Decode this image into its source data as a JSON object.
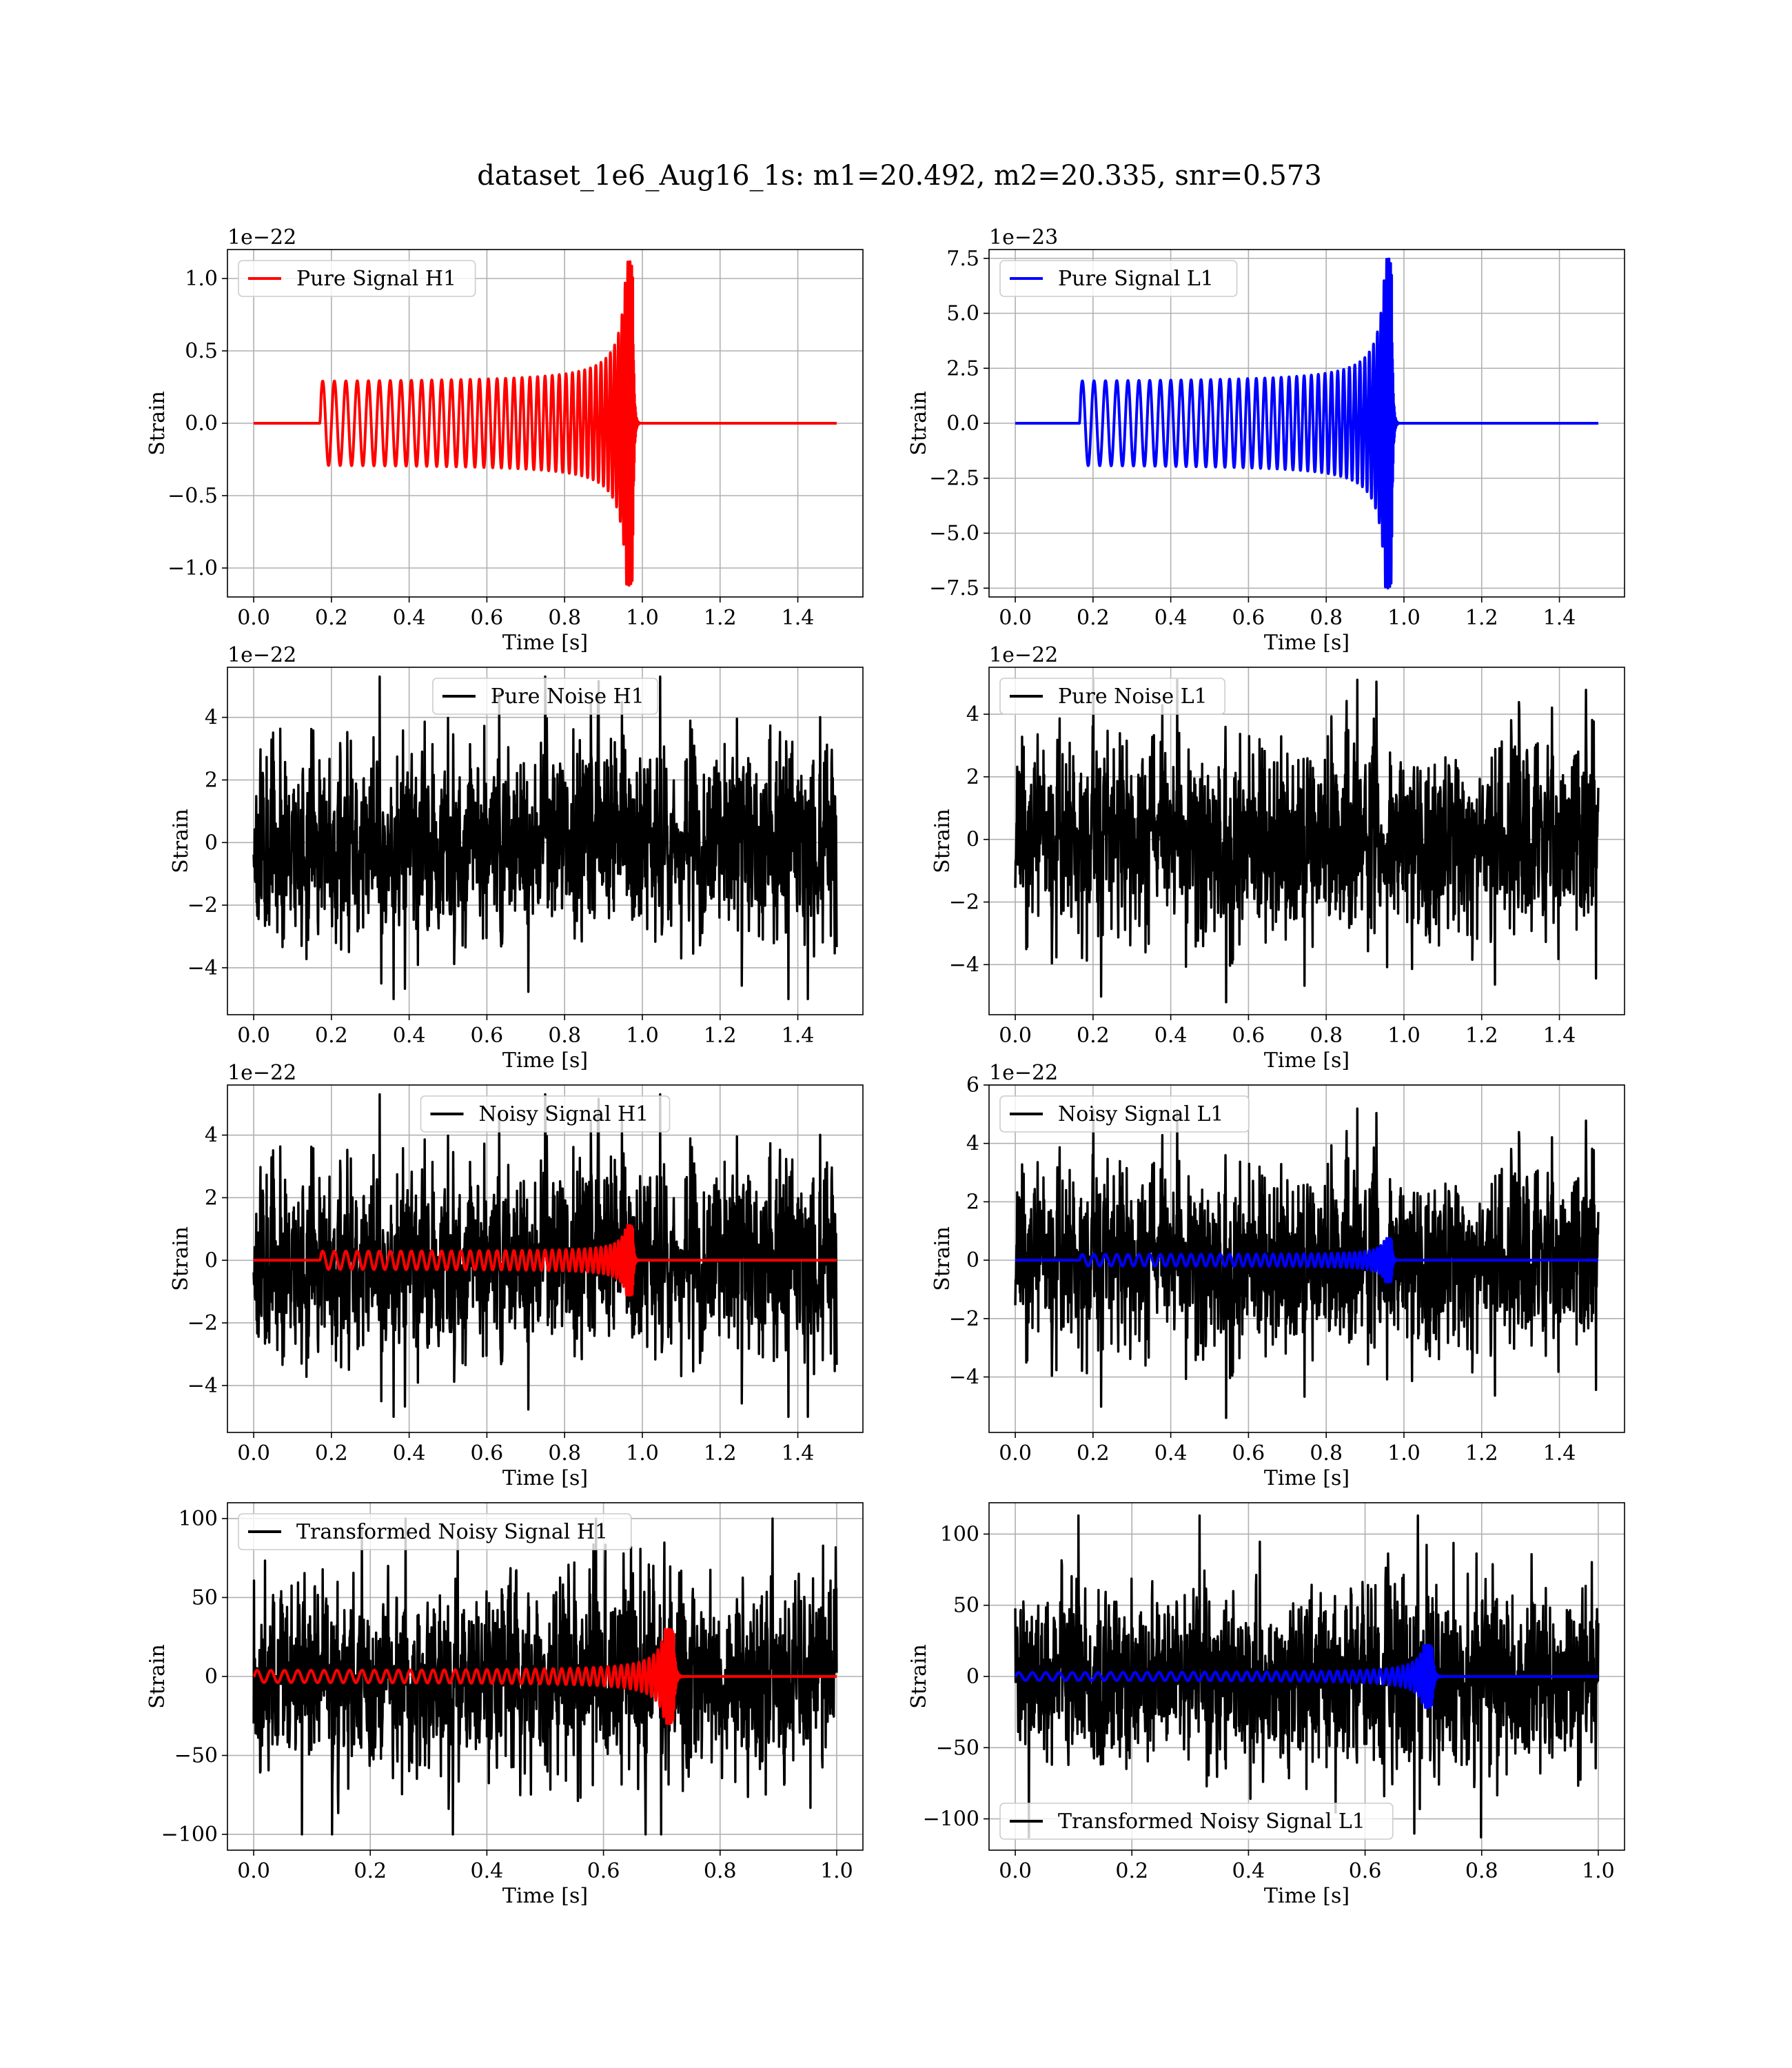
{
  "figure": {
    "title": "dataset_1e6_Aug16_1s: m1=20.492, m2=20.335, snr=0.573"
  },
  "colors": {
    "h1_signal": "#ff0000",
    "l1_signal": "#0000ff",
    "noise": "#000000",
    "grid": "#b0b0b0"
  },
  "chart_data": [
    {
      "id": "pure-signal-h1",
      "type": "line",
      "x_range": [
        0,
        1.5
      ],
      "xticks": [
        "0.0",
        "0.2",
        "0.4",
        "0.6",
        "0.8",
        "1.0",
        "1.2",
        "1.4"
      ],
      "xlabel": "Time [s]",
      "ylabel": "Strain",
      "ylim": [
        -1.2,
        1.2
      ],
      "yticks": [
        "−1.0",
        "−0.5",
        "0.0",
        "0.5",
        "1.0"
      ],
      "offset_text": "1e−22",
      "grid": true,
      "legend_position": "upper-left",
      "series": [
        {
          "name": "Pure Signal H1",
          "color": "#ff0000",
          "kind": "chirp",
          "waveform": {
            "start": 0.17,
            "merger": 0.975,
            "end": 1.5,
            "amplitude_start": 0.28,
            "amplitude_peak": 1.12,
            "cycles": 42
          }
        }
      ]
    },
    {
      "id": "pure-signal-l1",
      "type": "line",
      "x_range": [
        0,
        1.5
      ],
      "xticks": [
        "0.0",
        "0.2",
        "0.4",
        "0.6",
        "0.8",
        "1.0",
        "1.2",
        "1.4"
      ],
      "xlabel": "Time [s]",
      "ylabel": "Strain",
      "ylim": [
        -7.9,
        7.9
      ],
      "yticks": [
        "−7.5",
        "−5.0",
        "−2.5",
        "0.0",
        "2.5",
        "5.0",
        "7.5"
      ],
      "offset_text": "1e−23",
      "grid": true,
      "legend_position": "upper-left",
      "series": [
        {
          "name": "Pure Signal L1",
          "color": "#0000ff",
          "kind": "chirp",
          "waveform": {
            "start": 0.165,
            "merger": 0.968,
            "end": 1.5,
            "amplitude_start": 1.85,
            "amplitude_peak": 7.5,
            "cycles": 42
          }
        }
      ]
    },
    {
      "id": "pure-noise-h1",
      "type": "line",
      "x_range": [
        0,
        1.5
      ],
      "xticks": [
        "0.0",
        "0.2",
        "0.4",
        "0.6",
        "0.8",
        "1.0",
        "1.2",
        "1.4"
      ],
      "xlabel": "Time [s]",
      "ylabel": "Strain",
      "ylim": [
        -5.5,
        5.6
      ],
      "yticks": [
        "−4",
        "−2",
        "0",
        "2",
        "4"
      ],
      "offset_text": "1e−22",
      "grid": true,
      "legend_position": "upper-center",
      "series": [
        {
          "name": "Pure Noise H1",
          "color": "#000000",
          "kind": "noise",
          "waveform": {
            "start": 0,
            "end": 1.5,
            "std": 1.55,
            "min": -5.0,
            "max": 5.3,
            "seed": 11
          }
        }
      ]
    },
    {
      "id": "pure-noise-l1",
      "type": "line",
      "x_range": [
        0,
        1.5
      ],
      "xticks": [
        "0.0",
        "0.2",
        "0.4",
        "0.6",
        "0.8",
        "1.0",
        "1.2",
        "1.4"
      ],
      "xlabel": "Time [s]",
      "ylabel": "Strain",
      "ylim": [
        -5.6,
        5.5
      ],
      "yticks": [
        "−4",
        "−2",
        "0",
        "2",
        "4"
      ],
      "offset_text": "1e−22",
      "grid": true,
      "legend_position": "upper-left",
      "series": [
        {
          "name": "Pure Noise L1",
          "color": "#000000",
          "kind": "noise",
          "waveform": {
            "start": 0,
            "end": 1.5,
            "std": 1.55,
            "min": -5.2,
            "max": 5.1,
            "seed": 23
          }
        }
      ]
    },
    {
      "id": "noisy-signal-h1",
      "type": "line",
      "x_range": [
        0,
        1.5
      ],
      "xticks": [
        "0.0",
        "0.2",
        "0.4",
        "0.6",
        "0.8",
        "1.0",
        "1.2",
        "1.4"
      ],
      "xlabel": "Time [s]",
      "ylabel": "Strain",
      "ylim": [
        -5.5,
        5.6
      ],
      "yticks": [
        "−4",
        "−2",
        "0",
        "2",
        "4"
      ],
      "offset_text": "1e−22",
      "grid": true,
      "legend_position": "upper-center",
      "series": [
        {
          "name": "Noisy Signal H1",
          "color": "#000000",
          "kind": "noise",
          "waveform": {
            "start": 0,
            "end": 1.5,
            "std": 1.55,
            "min": -5.0,
            "max": 5.3,
            "seed": 11
          }
        },
        {
          "color": "#ff0000",
          "kind": "chirp",
          "waveform": {
            "start": 0.17,
            "merger": 0.975,
            "end": 1.5,
            "amplitude_start": 0.28,
            "amplitude_peak": 1.12,
            "cycles": 42
          }
        }
      ]
    },
    {
      "id": "noisy-signal-l1",
      "type": "line",
      "x_range": [
        0,
        1.5
      ],
      "xticks": [
        "0.0",
        "0.2",
        "0.4",
        "0.6",
        "0.8",
        "1.0",
        "1.2",
        "1.4"
      ],
      "xlabel": "Time [s]",
      "ylabel": "Strain",
      "ylim": [
        -5.9,
        6.0
      ],
      "yticks": [
        "−4",
        "−2",
        "0",
        "2",
        "4",
        "6"
      ],
      "offset_text": "1e−22",
      "grid": true,
      "legend_position": "upper-left",
      "series": [
        {
          "name": "Noisy Signal L1",
          "color": "#000000",
          "kind": "noise",
          "waveform": {
            "start": 0,
            "end": 1.5,
            "std": 1.55,
            "min": -5.4,
            "max": 5.2,
            "seed": 23
          }
        },
        {
          "color": "#0000ff",
          "kind": "chirp",
          "waveform": {
            "start": 0.165,
            "merger": 0.968,
            "end": 1.5,
            "amplitude_start": 0.19,
            "amplitude_peak": 0.75,
            "cycles": 42
          }
        }
      ]
    },
    {
      "id": "transformed-noisy-signal-h1",
      "type": "line",
      "x_range": [
        0,
        1.0
      ],
      "xticks": [
        "0.0",
        "0.2",
        "0.4",
        "0.6",
        "0.8",
        "1.0"
      ],
      "xlabel": "Time [s]",
      "ylabel": "Strain",
      "ylim": [
        -110,
        110
      ],
      "yticks": [
        "−100",
        "−50",
        "0",
        "50",
        "100"
      ],
      "grid": true,
      "legend_position": "upper-left",
      "series": [
        {
          "name": "Transformed Noisy Signal H1",
          "color": "#000000",
          "kind": "noise",
          "waveform": {
            "start": 0,
            "end": 1.0,
            "std": 30,
            "min": -100,
            "max": 100,
            "seed": 37
          }
        },
        {
          "color": "#ff0000",
          "kind": "chirp",
          "waveform": {
            "start": 0.0,
            "merger": 0.72,
            "end": 1.0,
            "amplitude_start": 3.5,
            "amplitude_peak": 30,
            "cycles": 48
          }
        }
      ]
    },
    {
      "id": "transformed-noisy-signal-l1",
      "type": "line",
      "x_range": [
        0,
        1.0
      ],
      "xticks": [
        "0.0",
        "0.2",
        "0.4",
        "0.6",
        "0.8",
        "1.0"
      ],
      "xlabel": "Time [s]",
      "ylabel": "Strain",
      "ylim": [
        -122,
        122
      ],
      "yticks": [
        "−100",
        "−50",
        "0",
        "50",
        "100"
      ],
      "grid": true,
      "legend_position": "lower-left",
      "series": [
        {
          "name": "Transformed Noisy Signal L1",
          "color": "#000000",
          "kind": "noise",
          "waveform": {
            "start": 0,
            "end": 1.0,
            "std": 32,
            "min": -113,
            "max": 113,
            "seed": 41
          }
        },
        {
          "color": "#0000ff",
          "kind": "chirp",
          "waveform": {
            "start": 0.0,
            "merger": 0.715,
            "end": 1.0,
            "amplitude_start": 2.5,
            "amplitude_peak": 22,
            "cycles": 48
          }
        }
      ]
    }
  ]
}
